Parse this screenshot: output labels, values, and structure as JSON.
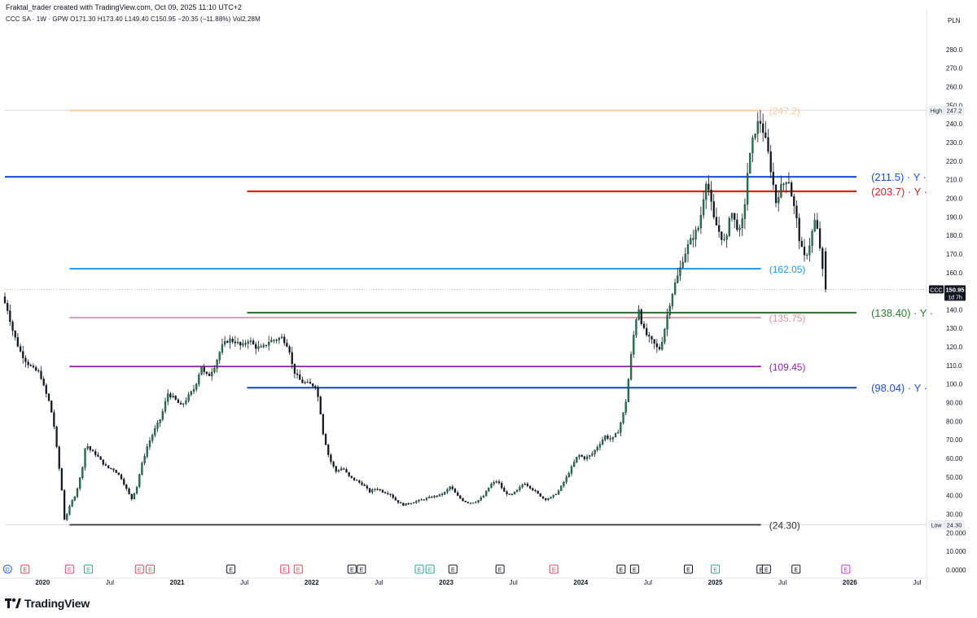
{
  "header": {
    "attribution": "Fraktal_trader created with TradingView.com, Oct 09, 2025 11:10 UTC+2",
    "symbol_line": "CCC SA · 1W · GPW  O171.30  H173.40  L149.40  C150.95  −20.35 (−11.88%)  Vol2.28M",
    "currency": "PLN"
  },
  "branding": {
    "logo_text": "TradingView"
  },
  "colors": {
    "up": "#1f7a4d",
    "down": "#131722",
    "wick": "#131722",
    "axis_text": "#131722",
    "grid": "#ffffff",
    "crosshair": "#9598a1"
  },
  "chart_data": {
    "type": "candlestick",
    "symbol": "CCC",
    "timeframe": "1W",
    "exchange": "GPW",
    "ylim": [
      0,
      290
    ],
    "y_ticks": [
      {
        "v": 280,
        "label": "280.0"
      },
      {
        "v": 270,
        "label": "270.0"
      },
      {
        "v": 260,
        "label": "260.0"
      },
      {
        "v": 250,
        "label": "250.0"
      },
      {
        "v": 240,
        "label": "240.0"
      },
      {
        "v": 230,
        "label": "230.0"
      },
      {
        "v": 220,
        "label": "220.0"
      },
      {
        "v": 210,
        "label": "210.0"
      },
      {
        "v": 200,
        "label": "200.0"
      },
      {
        "v": 190,
        "label": "190.0"
      },
      {
        "v": 180,
        "label": "180.0"
      },
      {
        "v": 170,
        "label": "170.0"
      },
      {
        "v": 160,
        "label": "160.0"
      },
      {
        "v": 140,
        "label": "140.0"
      },
      {
        "v": 130,
        "label": "130.0"
      },
      {
        "v": 120,
        "label": "120.0"
      },
      {
        "v": 110,
        "label": "110.0"
      },
      {
        "v": 100,
        "label": "100.0"
      },
      {
        "v": 90,
        "label": "90.00"
      },
      {
        "v": 80,
        "label": "80.00"
      },
      {
        "v": 70,
        "label": "70.00"
      },
      {
        "v": 60,
        "label": "60.00"
      },
      {
        "v": 50,
        "label": "50.00"
      },
      {
        "v": 40,
        "label": "40.00"
      },
      {
        "v": 30,
        "label": "30.00"
      },
      {
        "v": 20,
        "label": "20.000"
      },
      {
        "v": 10,
        "label": "10.000"
      },
      {
        "v": 0,
        "label": "0.0000"
      }
    ],
    "x_ticks": [
      {
        "t": 2020.0,
        "label": "2020",
        "major": true
      },
      {
        "t": 2020.5,
        "label": "Jul",
        "major": false
      },
      {
        "t": 2021.0,
        "label": "2021",
        "major": true
      },
      {
        "t": 2021.5,
        "label": "Jul",
        "major": false
      },
      {
        "t": 2022.0,
        "label": "2022",
        "major": true
      },
      {
        "t": 2022.5,
        "label": "Jul",
        "major": false
      },
      {
        "t": 2023.0,
        "label": "2023",
        "major": true
      },
      {
        "t": 2023.5,
        "label": "Jul",
        "major": false
      },
      {
        "t": 2024.0,
        "label": "2024",
        "major": true
      },
      {
        "t": 2024.5,
        "label": "Jul",
        "major": false
      },
      {
        "t": 2025.0,
        "label": "2025",
        "major": true
      },
      {
        "t": 2025.5,
        "label": "Jul",
        "major": false
      },
      {
        "t": 2026.0,
        "label": "2026",
        "major": true
      },
      {
        "t": 2026.5,
        "label": "Jul",
        "major": false
      }
    ],
    "xlim": [
      2019.72,
      2026.57
    ],
    "price_path": [
      [
        2019.72,
        147
      ],
      [
        2019.76,
        140
      ],
      [
        2019.8,
        128
      ],
      [
        2019.85,
        118
      ],
      [
        2019.9,
        112
      ],
      [
        2019.95,
        108
      ],
      [
        2020.0,
        106
      ],
      [
        2020.03,
        98
      ],
      [
        2020.07,
        90
      ],
      [
        2020.1,
        80
      ],
      [
        2020.13,
        62
      ],
      [
        2020.16,
        45
      ],
      [
        2020.18,
        27
      ],
      [
        2020.2,
        30
      ],
      [
        2020.23,
        36
      ],
      [
        2020.26,
        40
      ],
      [
        2020.29,
        47
      ],
      [
        2020.32,
        57
      ],
      [
        2020.34,
        68
      ],
      [
        2020.38,
        64
      ],
      [
        2020.42,
        62
      ],
      [
        2020.46,
        58
      ],
      [
        2020.5,
        55
      ],
      [
        2020.55,
        54
      ],
      [
        2020.6,
        50
      ],
      [
        2020.64,
        44
      ],
      [
        2020.68,
        38
      ],
      [
        2020.72,
        45
      ],
      [
        2020.75,
        55
      ],
      [
        2020.8,
        67
      ],
      [
        2020.85,
        75
      ],
      [
        2020.9,
        82
      ],
      [
        2020.95,
        95
      ],
      [
        2021.0,
        92
      ],
      [
        2021.05,
        88
      ],
      [
        2021.1,
        93
      ],
      [
        2021.15,
        98
      ],
      [
        2021.2,
        110
      ],
      [
        2021.22,
        106
      ],
      [
        2021.25,
        104
      ],
      [
        2021.3,
        110
      ],
      [
        2021.35,
        120
      ],
      [
        2021.4,
        124
      ],
      [
        2021.45,
        123
      ],
      [
        2021.5,
        120
      ],
      [
        2021.55,
        124
      ],
      [
        2021.6,
        120
      ],
      [
        2021.65,
        119
      ],
      [
        2021.7,
        123
      ],
      [
        2021.75,
        124
      ],
      [
        2021.8,
        125
      ],
      [
        2021.85,
        120
      ],
      [
        2021.88,
        108
      ],
      [
        2021.92,
        103
      ],
      [
        2021.95,
        101
      ],
      [
        2022.0,
        100
      ],
      [
        2022.05,
        99
      ],
      [
        2022.08,
        88
      ],
      [
        2022.1,
        75
      ],
      [
        2022.15,
        60
      ],
      [
        2022.2,
        53
      ],
      [
        2022.25,
        55
      ],
      [
        2022.3,
        50
      ],
      [
        2022.35,
        48
      ],
      [
        2022.4,
        46
      ],
      [
        2022.45,
        42
      ],
      [
        2022.5,
        44
      ],
      [
        2022.55,
        42
      ],
      [
        2022.6,
        41
      ],
      [
        2022.65,
        37
      ],
      [
        2022.7,
        35
      ],
      [
        2022.75,
        36
      ],
      [
        2022.8,
        37
      ],
      [
        2022.85,
        38
      ],
      [
        2022.9,
        39
      ],
      [
        2022.95,
        40
      ],
      [
        2023.0,
        41
      ],
      [
        2023.05,
        45
      ],
      [
        2023.1,
        40
      ],
      [
        2023.15,
        37
      ],
      [
        2023.2,
        36
      ],
      [
        2023.25,
        37
      ],
      [
        2023.3,
        40
      ],
      [
        2023.35,
        46
      ],
      [
        2023.4,
        48
      ],
      [
        2023.45,
        42
      ],
      [
        2023.5,
        40
      ],
      [
        2023.55,
        43
      ],
      [
        2023.6,
        47
      ],
      [
        2023.65,
        44
      ],
      [
        2023.7,
        41
      ],
      [
        2023.75,
        38
      ],
      [
        2023.8,
        39
      ],
      [
        2023.85,
        42
      ],
      [
        2023.9,
        48
      ],
      [
        2023.95,
        55
      ],
      [
        2024.0,
        62
      ],
      [
        2024.05,
        60
      ],
      [
        2024.1,
        62
      ],
      [
        2024.15,
        67
      ],
      [
        2024.2,
        72
      ],
      [
        2024.25,
        70
      ],
      [
        2024.3,
        75
      ],
      [
        2024.35,
        88
      ],
      [
        2024.37,
        100
      ],
      [
        2024.4,
        120
      ],
      [
        2024.43,
        135
      ],
      [
        2024.45,
        141
      ],
      [
        2024.48,
        130
      ],
      [
        2024.52,
        125
      ],
      [
        2024.56,
        122
      ],
      [
        2024.6,
        118
      ],
      [
        2024.63,
        125
      ],
      [
        2024.67,
        140
      ],
      [
        2024.71,
        152
      ],
      [
        2024.75,
        160
      ],
      [
        2024.78,
        168
      ],
      [
        2024.82,
        175
      ],
      [
        2024.86,
        180
      ],
      [
        2024.9,
        185
      ],
      [
        2024.93,
        200
      ],
      [
        2024.95,
        210
      ],
      [
        2024.98,
        202
      ],
      [
        2025.0,
        190
      ],
      [
        2025.03,
        185
      ],
      [
        2025.06,
        180
      ],
      [
        2025.1,
        175
      ],
      [
        2025.13,
        195
      ],
      [
        2025.16,
        188
      ],
      [
        2025.2,
        182
      ],
      [
        2025.23,
        190
      ],
      [
        2025.26,
        215
      ],
      [
        2025.29,
        228
      ],
      [
        2025.32,
        238
      ],
      [
        2025.35,
        242
      ],
      [
        2025.38,
        235
      ],
      [
        2025.41,
        225
      ],
      [
        2025.44,
        212
      ],
      [
        2025.47,
        198
      ],
      [
        2025.5,
        205
      ],
      [
        2025.53,
        208
      ],
      [
        2025.56,
        212
      ],
      [
        2025.59,
        200
      ],
      [
        2025.62,
        190
      ],
      [
        2025.65,
        175
      ],
      [
        2025.68,
        168
      ],
      [
        2025.71,
        172
      ],
      [
        2025.74,
        182
      ],
      [
        2025.76,
        188
      ],
      [
        2025.78,
        182
      ],
      [
        2025.8,
        172
      ],
      [
        2025.82,
        158
      ]
    ],
    "last_candle": {
      "open": 171.3,
      "high": 173.4,
      "low": 149.4,
      "close": 150.95
    },
    "levels": [
      {
        "value": 247.2,
        "label": "(247.2)",
        "color": "#f6c89a",
        "t_start": 2020.2,
        "t_end": 2025.34,
        "label_size": "small"
      },
      {
        "value": 211.5,
        "label": "(211.5)",
        "suffix": "· Y ·",
        "color": "#1c4fd8",
        "t_start": 2019.72,
        "t_end": 2026.05,
        "label_size": "large"
      },
      {
        "value": 203.7,
        "label": "(203.7)",
        "suffix": "· Y ·",
        "color": "#e01e1e",
        "t_start": 2021.52,
        "t_end": 2026.05,
        "label_size": "large"
      },
      {
        "value": 162.05,
        "label": "(162.05)",
        "color": "#2196f3",
        "t_start": 2020.2,
        "t_end": 2025.34,
        "label_size": "small"
      },
      {
        "value": 138.4,
        "label": "(138.40)",
        "suffix": "· Y ·",
        "color": "#2e7d32",
        "t_start": 2021.52,
        "t_end": 2026.05,
        "label_size": "large"
      },
      {
        "value": 135.75,
        "label": "(135.75)",
        "color": "#e58fa8",
        "t_start": 2020.2,
        "t_end": 2025.34,
        "label_size": "small"
      },
      {
        "value": 109.45,
        "label": "(109.45)",
        "color": "#8e24aa",
        "t_start": 2020.2,
        "t_end": 2025.34,
        "label_size": "small"
      },
      {
        "value": 98.04,
        "label": "(98.04)",
        "suffix": "· Y ·",
        "color": "#1c4fd8",
        "t_start": 2021.52,
        "t_end": 2026.05,
        "label_size": "large"
      },
      {
        "value": 24.3,
        "label": "(24.30)",
        "color": "#333333",
        "t_start": 2020.2,
        "t_end": 2025.34,
        "label_size": "small"
      }
    ],
    "price_tags": [
      {
        "value": 247.2,
        "prefix": "High",
        "text": "247.2",
        "style": "light"
      },
      {
        "value": 150.95,
        "prefix": "CCC",
        "text": "150.95",
        "sub": "1d 7h",
        "style": "dark"
      },
      {
        "value": 24.3,
        "prefix": "Low",
        "text": "24.30",
        "style": "light"
      }
    ],
    "events": [
      {
        "t": 2019.74,
        "kind": "D",
        "color": "#2962ff"
      },
      {
        "t": 2019.87,
        "kind": "E",
        "color": "#e0455b"
      },
      {
        "t": 2020.2,
        "kind": "E",
        "color": "#e0455b"
      },
      {
        "t": 2020.34,
        "kind": "E",
        "color": "#22ab94"
      },
      {
        "t": 2020.72,
        "kind": "E",
        "color": "#e0455b"
      },
      {
        "t": 2020.8,
        "kind": "E",
        "color": "#e0455b"
      },
      {
        "t": 2021.4,
        "kind": "E",
        "color": "#131722"
      },
      {
        "t": 2021.8,
        "kind": "E",
        "color": "#e0455b"
      },
      {
        "t": 2021.9,
        "kind": "E",
        "color": "#e0455b"
      },
      {
        "t": 2022.3,
        "kind": "E",
        "color": "#131722"
      },
      {
        "t": 2022.37,
        "kind": "E",
        "color": "#131722"
      },
      {
        "t": 2022.8,
        "kind": "E",
        "color": "#22ab94"
      },
      {
        "t": 2022.88,
        "kind": "E",
        "color": "#22ab94"
      },
      {
        "t": 2023.05,
        "kind": "E",
        "color": "#131722"
      },
      {
        "t": 2023.4,
        "kind": "E",
        "color": "#131722"
      },
      {
        "t": 2023.8,
        "kind": "E",
        "color": "#e0455b"
      },
      {
        "t": 2024.3,
        "kind": "E",
        "color": "#131722"
      },
      {
        "t": 2024.4,
        "kind": "E",
        "color": "#131722"
      },
      {
        "t": 2024.8,
        "kind": "E",
        "color": "#131722"
      },
      {
        "t": 2025.0,
        "kind": "E",
        "color": "#22ab94"
      },
      {
        "t": 2025.34,
        "kind": "E",
        "color": "#131722"
      },
      {
        "t": 2025.38,
        "kind": "E",
        "color": "#131722"
      },
      {
        "t": 2025.6,
        "kind": "E",
        "color": "#131722"
      },
      {
        "t": 2025.97,
        "kind": "E",
        "color": "#c03bdb"
      }
    ]
  }
}
